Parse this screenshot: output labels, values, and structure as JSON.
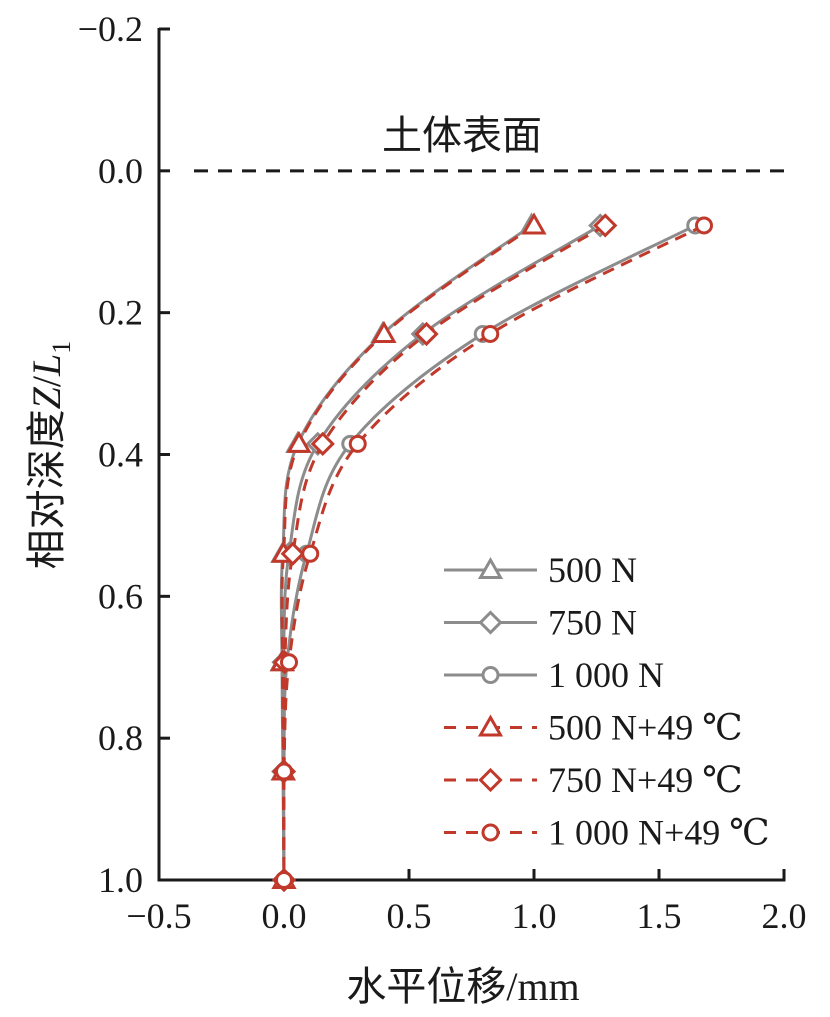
{
  "chart_data": {
    "type": "line",
    "x_title": {
      "main": "水平位移",
      "unit": "/mm"
    },
    "y_title": {
      "main": "相对深度",
      "var": "Z",
      "sep": "/",
      "var2": "L",
      "sub": "1"
    },
    "xlim": [
      -0.5,
      2.0
    ],
    "ylim": [
      -0.2,
      1.0
    ],
    "y_inverted": true,
    "x_ticks": [
      "−0.5",
      "0.0",
      "0.5",
      "1.0",
      "1.5",
      "2.0"
    ],
    "x_tick_values": [
      -0.5,
      0.0,
      0.5,
      1.0,
      1.5,
      2.0
    ],
    "y_ticks": [
      "−0.2",
      "0.0",
      "0.2",
      "0.4",
      "0.6",
      "0.8",
      "1.0"
    ],
    "y_tick_values": [
      -0.2,
      0.0,
      0.2,
      0.4,
      0.6,
      0.8,
      1.0
    ],
    "surface_line": {
      "y": 0.0,
      "label": "土体表面"
    },
    "legend_position": "bottom-right",
    "colors": {
      "gray": "#8c8c8c",
      "red": "#c0392b"
    },
    "series": [
      {
        "name": "500 N",
        "marker": "triangle",
        "style": "solid",
        "color": "#8c8c8c",
        "points": [
          [
            0.99,
            0.077
          ],
          [
            0.395,
            0.23
          ],
          [
            0.055,
            0.385
          ],
          [
            -0.005,
            0.54
          ],
          [
            -0.008,
            0.693
          ],
          [
            -0.004,
            0.847
          ],
          [
            0.0,
            1.0
          ]
        ]
      },
      {
        "name": "750 N",
        "marker": "diamond",
        "style": "solid",
        "color": "#8c8c8c",
        "points": [
          [
            1.265,
            0.077
          ],
          [
            0.555,
            0.23
          ],
          [
            0.135,
            0.385
          ],
          [
            0.02,
            0.54
          ],
          [
            -0.002,
            0.693
          ],
          [
            -0.003,
            0.847
          ],
          [
            0.0,
            1.0
          ]
        ]
      },
      {
        "name": "1 000 N",
        "marker": "circle",
        "style": "solid",
        "color": "#8c8c8c",
        "points": [
          [
            1.645,
            0.077
          ],
          [
            0.795,
            0.23
          ],
          [
            0.265,
            0.385
          ],
          [
            0.09,
            0.54
          ],
          [
            0.012,
            0.693
          ],
          [
            0.0,
            0.847
          ],
          [
            0.0,
            1.0
          ]
        ]
      },
      {
        "name": "500 N+49 ℃",
        "marker": "triangle",
        "style": "dashed",
        "color": "#c0392b",
        "points": [
          [
            1.0,
            0.077
          ],
          [
            0.4,
            0.23
          ],
          [
            0.06,
            0.385
          ],
          [
            -0.002,
            0.54
          ],
          [
            -0.006,
            0.693
          ],
          [
            -0.002,
            0.847
          ],
          [
            0.0,
            1.0
          ]
        ]
      },
      {
        "name": "750 N+49 ℃",
        "marker": "diamond",
        "style": "dashed",
        "color": "#c0392b",
        "points": [
          [
            1.285,
            0.077
          ],
          [
            0.57,
            0.23
          ],
          [
            0.155,
            0.385
          ],
          [
            0.035,
            0.54
          ],
          [
            0.003,
            0.693
          ],
          [
            0.0,
            0.847
          ],
          [
            0.0,
            1.0
          ]
        ]
      },
      {
        "name": "1 000 N+49 ℃",
        "marker": "circle",
        "style": "dashed",
        "color": "#c0392b",
        "points": [
          [
            1.68,
            0.077
          ],
          [
            0.825,
            0.23
          ],
          [
            0.295,
            0.385
          ],
          [
            0.105,
            0.54
          ],
          [
            0.02,
            0.693
          ],
          [
            0.0,
            0.847
          ],
          [
            0.0,
            1.0
          ]
        ]
      }
    ]
  }
}
